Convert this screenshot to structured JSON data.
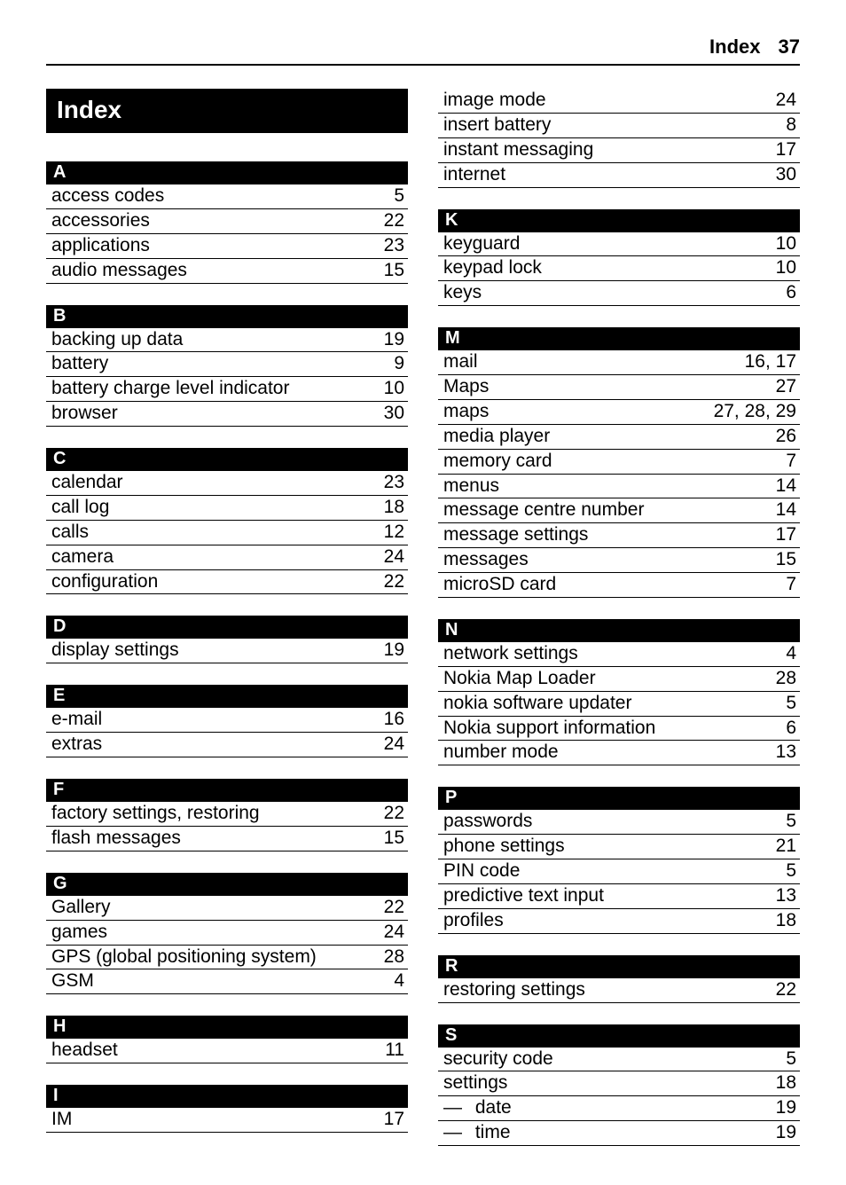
{
  "header": {
    "section": "Index",
    "page": "37"
  },
  "title": "Index",
  "groups_left": [
    {
      "letter": "A",
      "entries": [
        {
          "term": "access codes",
          "pages": "5"
        },
        {
          "term": "accessories",
          "pages": "22"
        },
        {
          "term": "applications",
          "pages": "23"
        },
        {
          "term": "audio messages",
          "pages": "15"
        }
      ]
    },
    {
      "letter": "B",
      "entries": [
        {
          "term": "backing up data",
          "pages": "19"
        },
        {
          "term": "battery",
          "pages": "9"
        },
        {
          "term": "battery charge level indicator",
          "pages": "10"
        },
        {
          "term": "browser",
          "pages": "30"
        }
      ]
    },
    {
      "letter": "C",
      "entries": [
        {
          "term": "calendar",
          "pages": "23"
        },
        {
          "term": "call log",
          "pages": "18"
        },
        {
          "term": "calls",
          "pages": "12"
        },
        {
          "term": "camera",
          "pages": "24"
        },
        {
          "term": "configuration",
          "pages": "22"
        }
      ]
    },
    {
      "letter": "D",
      "entries": [
        {
          "term": "display settings",
          "pages": "19"
        }
      ]
    },
    {
      "letter": "E",
      "entries": [
        {
          "term": "e-mail",
          "pages": "16"
        },
        {
          "term": "extras",
          "pages": "24"
        }
      ]
    },
    {
      "letter": "F",
      "entries": [
        {
          "term": "factory settings, restoring",
          "pages": "22"
        },
        {
          "term": "flash messages",
          "pages": "15"
        }
      ]
    },
    {
      "letter": "G",
      "entries": [
        {
          "term": "Gallery",
          "pages": "22"
        },
        {
          "term": "games",
          "pages": "24"
        },
        {
          "term": "GPS (global positioning system)",
          "pages": "28"
        },
        {
          "term": "GSM",
          "pages": "4"
        }
      ]
    },
    {
      "letter": "H",
      "entries": [
        {
          "term": "headset",
          "pages": "11"
        }
      ]
    },
    {
      "letter": "I",
      "entries": [
        {
          "term": "IM",
          "pages": "17"
        }
      ]
    }
  ],
  "right_top_entries": [
    {
      "term": "image mode",
      "pages": "24"
    },
    {
      "term": "insert battery",
      "pages": "8"
    },
    {
      "term": "instant messaging",
      "pages": "17"
    },
    {
      "term": "internet",
      "pages": "30"
    }
  ],
  "groups_right": [
    {
      "letter": "K",
      "entries": [
        {
          "term": "keyguard",
          "pages": "10"
        },
        {
          "term": "keypad lock",
          "pages": "10"
        },
        {
          "term": "keys",
          "pages": "6"
        }
      ]
    },
    {
      "letter": "M",
      "entries": [
        {
          "term": "mail",
          "pages": "16, 17"
        },
        {
          "term": "Maps",
          "pages": "27"
        },
        {
          "term": "maps",
          "pages": "27, 28, 29"
        },
        {
          "term": "media player",
          "pages": "26"
        },
        {
          "term": "memory card",
          "pages": "7"
        },
        {
          "term": "menus",
          "pages": "14"
        },
        {
          "term": "message centre number",
          "pages": "14"
        },
        {
          "term": "message settings",
          "pages": "17"
        },
        {
          "term": "messages",
          "pages": "15"
        },
        {
          "term": "microSD card",
          "pages": "7"
        }
      ]
    },
    {
      "letter": "N",
      "entries": [
        {
          "term": "network settings",
          "pages": "4"
        },
        {
          "term": "Nokia Map Loader",
          "pages": "28"
        },
        {
          "term": "nokia software updater",
          "pages": "5"
        },
        {
          "term": "Nokia support information",
          "pages": "6"
        },
        {
          "term": "number mode",
          "pages": "13"
        }
      ]
    },
    {
      "letter": "P",
      "entries": [
        {
          "term": "passwords",
          "pages": "5"
        },
        {
          "term": "phone settings",
          "pages": "21"
        },
        {
          "term": "PIN code",
          "pages": "5"
        },
        {
          "term": "predictive text input",
          "pages": "13"
        },
        {
          "term": "profiles",
          "pages": "18"
        }
      ]
    },
    {
      "letter": "R",
      "entries": [
        {
          "term": "restoring settings",
          "pages": "22"
        }
      ]
    },
    {
      "letter": "S",
      "entries": [
        {
          "term": "security code",
          "pages": "5"
        },
        {
          "term": "settings",
          "pages": "18"
        },
        {
          "term": "date",
          "pages": "19",
          "sub": true
        },
        {
          "term": "time",
          "pages": "19",
          "sub": true
        }
      ]
    }
  ]
}
